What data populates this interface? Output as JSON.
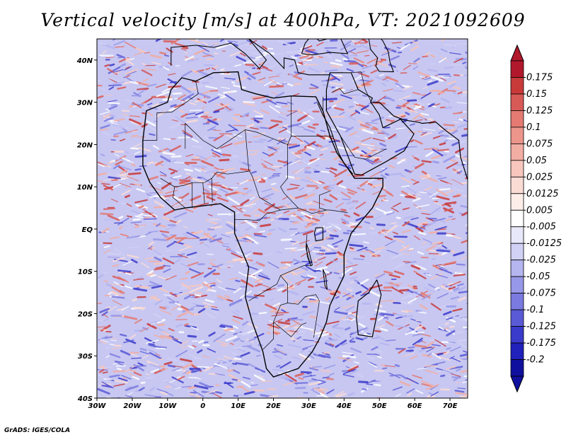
{
  "title": "Vertical velocity [m/s] at 400hPa, VT: 2021092609",
  "footer": "GrADS: IGES/COLA",
  "x_axis": {
    "labels": [
      "30W",
      "20W",
      "10W",
      "0",
      "10E",
      "20E",
      "30E",
      "40E",
      "50E",
      "60E",
      "70E"
    ],
    "lon_range": [
      -30,
      75
    ]
  },
  "y_axis": {
    "labels": [
      "40N",
      "30N",
      "20N",
      "10N",
      "EQ",
      "10S",
      "20S",
      "30S",
      "40S"
    ],
    "lat_range": [
      -40,
      45
    ]
  },
  "colorbar": {
    "labels": [
      "0.175",
      "0.15",
      "0.125",
      "0.1",
      "0.075",
      "0.05",
      "0.025",
      "0.0125",
      "0.005",
      "-0.005",
      "-0.0125",
      "-0.025",
      "-0.05",
      "-0.075",
      "-0.1",
      "-0.125",
      "-0.175",
      "-0.2"
    ],
    "colors": [
      "#b2182b",
      "#c83a3a",
      "#d85a56",
      "#e47a72",
      "#ec958b",
      "#f2aea3",
      "#f7c6bd",
      "#fbdcd5",
      "#fdeeea",
      "#ffffff",
      "#e8e8fb",
      "#d1d1f6",
      "#b5b5f0",
      "#9898e8",
      "#7a7ae0",
      "#5a5ad6",
      "#3a3acb",
      "#2020bb",
      "#10109e"
    ],
    "arrow_top_color": "#b2182b",
    "arrow_bottom_color": "#10109e"
  },
  "map": {
    "projection": "latlon",
    "fill_positive": "#e8877c",
    "fill_negative": "#8c8ce6",
    "background": "#c7c7f2"
  }
}
